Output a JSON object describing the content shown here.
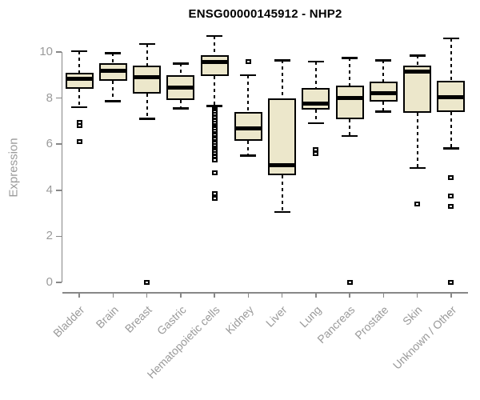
{
  "chart_data": {
    "type": "boxplot",
    "title": "ENSG00000145912 - NHP2",
    "xlabel": "",
    "ylabel": "Expression",
    "ylim": [
      0,
      10
    ],
    "y_ticks": [
      0,
      2,
      4,
      6,
      8,
      10
    ],
    "grid": false,
    "legend": "none",
    "box_fill": "#ece7cb",
    "box_stroke": "#000000",
    "axis_color": "#878787",
    "tick_label_color": "#9a9a9a",
    "title_color": "#000000",
    "categories": [
      "Bladder",
      "Brain",
      "Breast",
      "Gastric",
      "Hematopoietic cells",
      "Kidney",
      "Liver",
      "Lung",
      "Pancreas",
      "Prostate",
      "Skin",
      "Unknown / Other"
    ],
    "series": [
      {
        "name": "Bladder",
        "whisker_low": 7.6,
        "q1": 8.4,
        "median": 8.85,
        "q3": 9.1,
        "whisker_high": 10.05,
        "outliers": [
          6.95,
          6.8,
          6.1
        ]
      },
      {
        "name": "Brain",
        "whisker_low": 7.85,
        "q1": 8.75,
        "median": 9.2,
        "q3": 9.5,
        "whisker_high": 9.95,
        "outliers": []
      },
      {
        "name": "Breast",
        "whisker_low": 7.1,
        "q1": 8.2,
        "median": 8.9,
        "q3": 9.4,
        "whisker_high": 10.35,
        "outliers": [
          0
        ]
      },
      {
        "name": "Gastric",
        "whisker_low": 7.55,
        "q1": 7.9,
        "median": 8.45,
        "q3": 9.0,
        "whisker_high": 9.5,
        "outliers": []
      },
      {
        "name": "Hematopoietic cells",
        "whisker_low": 7.65,
        "q1": 8.95,
        "median": 9.55,
        "q3": 9.85,
        "whisker_high": 10.7,
        "outliers": [
          7.55,
          7.45,
          7.4,
          7.3,
          7.2,
          7.15,
          7.05,
          7.0,
          6.9,
          6.8,
          6.75,
          6.65,
          6.55,
          6.45,
          6.4,
          6.3,
          6.2,
          6.1,
          6.05,
          5.95,
          5.85,
          5.75,
          5.7,
          5.6,
          5.5,
          5.45,
          5.35,
          5.3,
          4.75,
          3.85,
          3.65
        ]
      },
      {
        "name": "Kidney",
        "whisker_low": 5.5,
        "q1": 6.15,
        "median": 6.7,
        "q3": 7.4,
        "whisker_high": 9.0,
        "outliers": [
          9.6
        ]
      },
      {
        "name": "Liver",
        "whisker_low": 3.05,
        "q1": 4.65,
        "median": 5.1,
        "q3": 8.0,
        "whisker_high": 9.65,
        "outliers": []
      },
      {
        "name": "Lung",
        "whisker_low": 6.9,
        "q1": 7.5,
        "median": 7.75,
        "q3": 8.45,
        "whisker_high": 9.6,
        "outliers": [
          5.75,
          5.6
        ]
      },
      {
        "name": "Pancreas",
        "whisker_low": 6.35,
        "q1": 7.1,
        "median": 8.0,
        "q3": 8.55,
        "whisker_high": 9.75,
        "outliers": [
          0
        ]
      },
      {
        "name": "Prostate",
        "whisker_low": 7.4,
        "q1": 7.85,
        "median": 8.2,
        "q3": 8.7,
        "whisker_high": 9.65,
        "outliers": []
      },
      {
        "name": "Skin",
        "whisker_low": 4.95,
        "q1": 7.35,
        "median": 9.15,
        "q3": 9.4,
        "whisker_high": 9.85,
        "outliers": [
          3.4
        ]
      },
      {
        "name": "Unknown / Other",
        "whisker_low": 5.8,
        "q1": 7.4,
        "median": 8.05,
        "q3": 8.75,
        "whisker_high": 10.6,
        "outliers": [
          4.55,
          3.75,
          3.3,
          0
        ]
      }
    ]
  }
}
